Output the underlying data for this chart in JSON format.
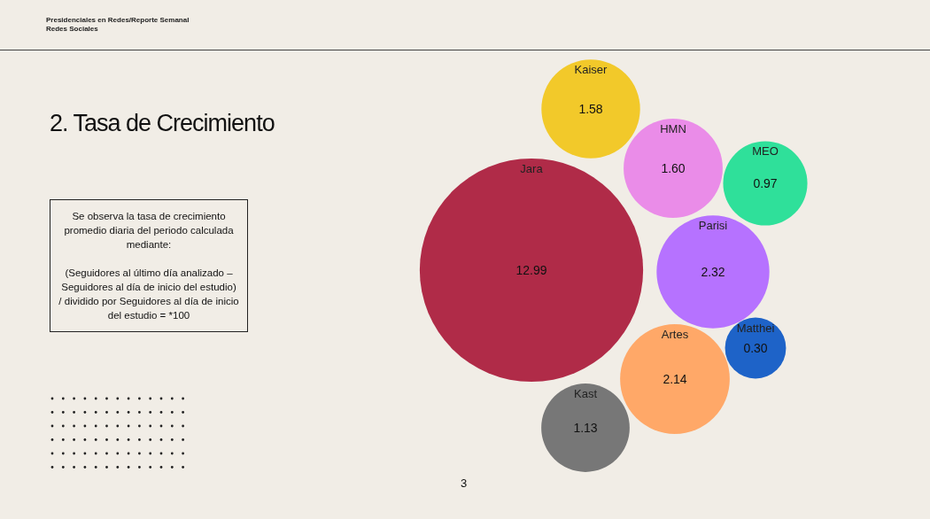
{
  "chart_data": {
    "type": "other",
    "title": "2. Tasa de Crecimiento",
    "categories": [
      "Kaiser",
      "HMN",
      "MEO",
      "Jara",
      "Parisi",
      "Matthei",
      "Artes",
      "Kast"
    ],
    "values": [
      1.58,
      1.6,
      0.97,
      12.99,
      2.32,
      0.3,
      2.14,
      1.13
    ],
    "colors": [
      "#f2c92a",
      "#ea8ce8",
      "#2fe09a",
      "#b02b48",
      "#b672ff",
      "#1e63c8",
      "#ffa868",
      "#777777"
    ],
    "value_labels": [
      "1.58",
      "1.60",
      "0.97",
      "12.99",
      "2.32",
      "0.30",
      "2.14",
      "1.13"
    ],
    "annotations": [
      "Presidenciales en Redes/Reporte Semanal",
      "Redes Sociales",
      "Se observa la tasa de crecimiento promedio diaria del periodo calculada mediante:\n\n(Seguidores al último día analizado – Seguidores al día de inicio del estudio)\n/ dividido por Seguidores al día de inicio del estudio = *100",
      "3"
    ]
  }
}
